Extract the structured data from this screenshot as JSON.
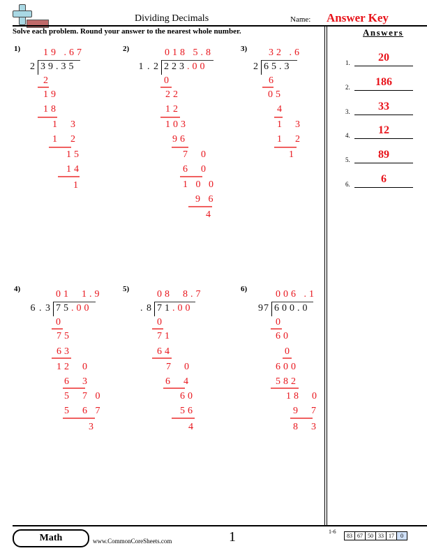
{
  "header": {
    "title": "Dividing Decimals",
    "name_label": "Name:",
    "name_value": "Answer Key",
    "logo_icon": "plus-logo-icon"
  },
  "instructions": "Solve each problem. Round your answer to the nearest whole number.",
  "answers_title": "Answers",
  "colors": {
    "answer": "#e8141b",
    "work_line": "#f06060"
  },
  "problems": [
    {
      "label": "1)",
      "divisor": "2",
      "dividend": "39.35",
      "dividend_added": "",
      "quotient": "19 .67",
      "work": [
        "2",
        "19",
        "18",
        "1  3",
        "1  2",
        "15",
        "14",
        "1"
      ]
    },
    {
      "label": "2)",
      "divisor": "1 . 2",
      "dividend": "223",
      "dividend_added": ".00",
      "quotient": "018 5.8",
      "work": [
        "0",
        "22",
        "12",
        "103",
        "96",
        "7  0",
        "6  0",
        "1 0 0",
        "9 6",
        "4"
      ]
    },
    {
      "label": "3)",
      "divisor": "2",
      "dividend": "65.3",
      "dividend_added": "",
      "quotient": "32 .6",
      "work": [
        "6",
        "05",
        "4",
        "1  3",
        "1  2",
        "1"
      ]
    },
    {
      "label": "4)",
      "divisor": "6 . 3",
      "dividend": "75",
      "dividend_added": ".00",
      "quotient": "01  1.9",
      "work": [
        "0",
        "75",
        "63",
        "12  0",
        "6  3",
        "5  7 0",
        "5  6 7",
        "3"
      ]
    },
    {
      "label": "5)",
      "divisor": ". 8",
      "dividend": "71",
      "dividend_added": ".00",
      "quotient": "08  8.7",
      "work": [
        "0",
        "71",
        "64",
        "7  0",
        "6  4",
        "60",
        "56",
        "4"
      ]
    },
    {
      "label": "6)",
      "divisor": "97",
      "dividend": "600.0",
      "dividend_added": "",
      "quotient": "006 .1",
      "work": [
        "0",
        "60",
        "0",
        "600",
        "582",
        "18  0",
        "9  7",
        "8  3"
      ]
    }
  ],
  "answers": [
    {
      "n": "1.",
      "v": "20"
    },
    {
      "n": "2.",
      "v": "186"
    },
    {
      "n": "3.",
      "v": "33"
    },
    {
      "n": "4.",
      "v": "12"
    },
    {
      "n": "5.",
      "v": "89"
    },
    {
      "n": "6.",
      "v": "6"
    }
  ],
  "footer": {
    "subject": "Math",
    "website": "www.CommonCoreSheets.com",
    "page": "1",
    "range": "1-6",
    "scores": [
      "83",
      "67",
      "50",
      "33",
      "17",
      "0"
    ]
  }
}
